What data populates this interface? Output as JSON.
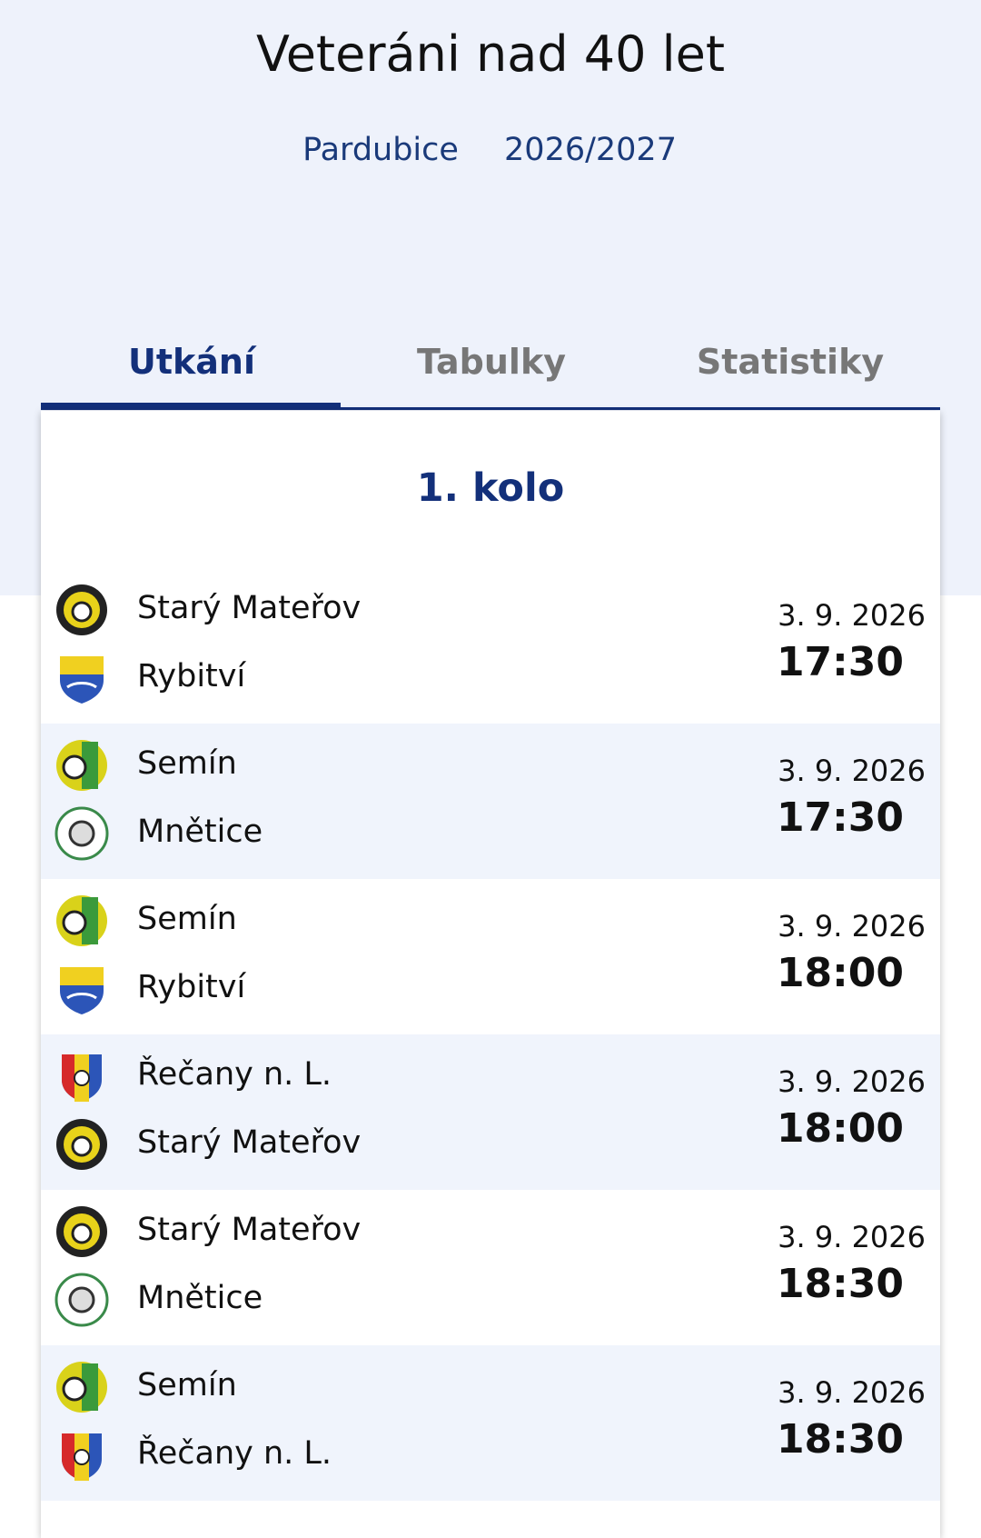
{
  "header": {
    "title": "Veteráni nad 40 let",
    "region": "Pardubice",
    "season": "2026/2027"
  },
  "tabs": [
    "Utkání",
    "Tabulky",
    "Statistiky"
  ],
  "round": {
    "title": "1. kolo"
  },
  "matches": [
    {
      "home": "Starý Mateřov",
      "away": "Rybitví",
      "date": "3. 9. 2026",
      "time": "17:30"
    },
    {
      "home": "Semín",
      "away": "Mnětice",
      "date": "3. 9. 2026",
      "time": "17:30"
    },
    {
      "home": "Semín",
      "away": "Rybitví",
      "date": "3. 9. 2026",
      "time": "18:00"
    },
    {
      "home": "Řečany n. L.",
      "away": "Starý Mateřov",
      "date": "3. 9. 2026",
      "time": "18:00"
    },
    {
      "home": "Starý Mateřov",
      "away": "Mnětice",
      "date": "3. 9. 2026",
      "time": "18:30"
    },
    {
      "home": "Semín",
      "away": "Řečany n. L.",
      "date": "3. 9. 2026",
      "time": "18:30"
    }
  ]
}
